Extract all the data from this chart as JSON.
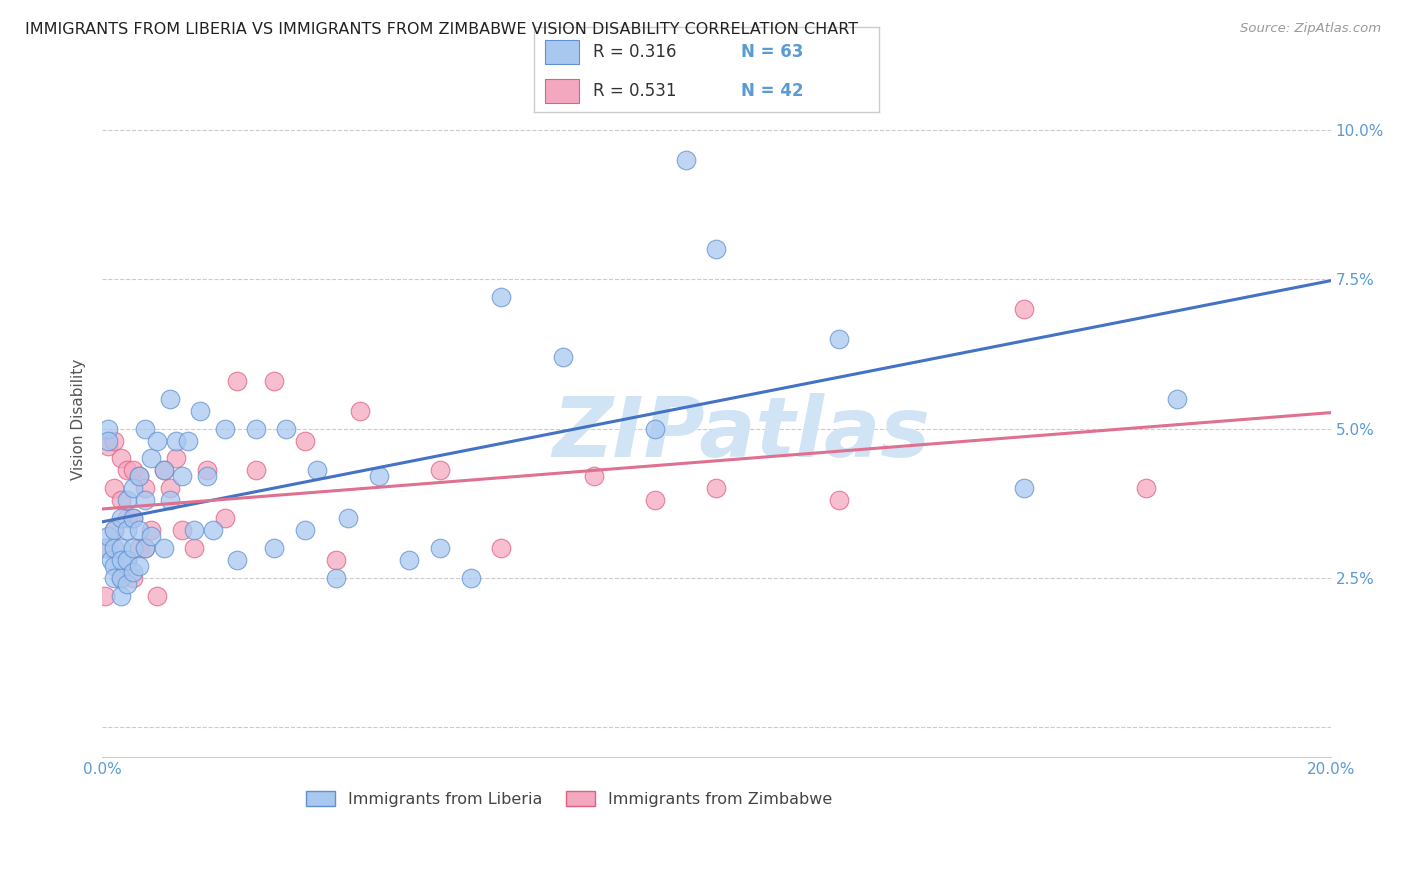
{
  "title": "IMMIGRANTS FROM LIBERIA VS IMMIGRANTS FROM ZIMBABWE VISION DISABILITY CORRELATION CHART",
  "source": "Source: ZipAtlas.com",
  "ylabel": "Vision Disability",
  "yticks": [
    0.0,
    0.025,
    0.05,
    0.075,
    0.1
  ],
  "ytick_labels": [
    "",
    "2.5%",
    "5.0%",
    "7.5%",
    "10.0%"
  ],
  "xticks": [
    0.0,
    0.05,
    0.1,
    0.15,
    0.2
  ],
  "xtick_labels": [
    "0.0%",
    "",
    "",
    "",
    "20.0%"
  ],
  "xlim": [
    0.0,
    0.2
  ],
  "ylim": [
    -0.005,
    0.108
  ],
  "liberia_color": "#A8C8F0",
  "zimbabwe_color": "#F4A8C0",
  "liberia_edge_color": "#6090D0",
  "zimbabwe_edge_color": "#E06080",
  "liberia_line_color": "#4472C4",
  "zimbabwe_line_color": "#E07090",
  "legend_R_liberia": "R = 0.316",
  "legend_N_liberia": "N = 63",
  "legend_R_zimbabwe": "R = 0.531",
  "legend_N_zimbabwe": "N = 42",
  "liberia_scatter_x": [
    0.0005,
    0.001,
    0.001,
    0.001,
    0.0015,
    0.002,
    0.002,
    0.002,
    0.002,
    0.003,
    0.003,
    0.003,
    0.003,
    0.003,
    0.004,
    0.004,
    0.004,
    0.004,
    0.005,
    0.005,
    0.005,
    0.005,
    0.006,
    0.006,
    0.006,
    0.007,
    0.007,
    0.007,
    0.008,
    0.008,
    0.009,
    0.01,
    0.01,
    0.011,
    0.011,
    0.012,
    0.013,
    0.014,
    0.015,
    0.016,
    0.017,
    0.018,
    0.02,
    0.022,
    0.025,
    0.028,
    0.03,
    0.033,
    0.035,
    0.038,
    0.04,
    0.045,
    0.05,
    0.055,
    0.06,
    0.065,
    0.075,
    0.09,
    0.095,
    0.1,
    0.12,
    0.15,
    0.175
  ],
  "liberia_scatter_y": [
    0.03,
    0.05,
    0.048,
    0.032,
    0.028,
    0.033,
    0.03,
    0.027,
    0.025,
    0.035,
    0.03,
    0.028,
    0.025,
    0.022,
    0.038,
    0.033,
    0.028,
    0.024,
    0.04,
    0.035,
    0.03,
    0.026,
    0.042,
    0.033,
    0.027,
    0.05,
    0.038,
    0.03,
    0.045,
    0.032,
    0.048,
    0.043,
    0.03,
    0.055,
    0.038,
    0.048,
    0.042,
    0.048,
    0.033,
    0.053,
    0.042,
    0.033,
    0.05,
    0.028,
    0.05,
    0.03,
    0.05,
    0.033,
    0.043,
    0.025,
    0.035,
    0.042,
    0.028,
    0.03,
    0.025,
    0.072,
    0.062,
    0.05,
    0.095,
    0.08,
    0.065,
    0.04,
    0.055
  ],
  "zimbabwe_scatter_x": [
    0.0005,
    0.001,
    0.001,
    0.002,
    0.002,
    0.002,
    0.003,
    0.003,
    0.003,
    0.004,
    0.004,
    0.004,
    0.005,
    0.005,
    0.005,
    0.006,
    0.006,
    0.007,
    0.007,
    0.008,
    0.009,
    0.01,
    0.011,
    0.012,
    0.013,
    0.015,
    0.017,
    0.02,
    0.022,
    0.025,
    0.028,
    0.033,
    0.038,
    0.042,
    0.055,
    0.065,
    0.08,
    0.09,
    0.1,
    0.12,
    0.15,
    0.17
  ],
  "zimbabwe_scatter_y": [
    0.022,
    0.047,
    0.03,
    0.048,
    0.04,
    0.033,
    0.045,
    0.038,
    0.025,
    0.043,
    0.035,
    0.028,
    0.043,
    0.035,
    0.025,
    0.042,
    0.03,
    0.04,
    0.03,
    0.033,
    0.022,
    0.043,
    0.04,
    0.045,
    0.033,
    0.03,
    0.043,
    0.035,
    0.058,
    0.043,
    0.058,
    0.048,
    0.028,
    0.053,
    0.043,
    0.03,
    0.042,
    0.038,
    0.04,
    0.038,
    0.07,
    0.04
  ],
  "watermark_text": "ZIPatlas",
  "watermark_color": "#D0E4F5",
  "background_color": "#FFFFFF",
  "grid_color": "#CCCCCC",
  "tick_color": "#5B9BD5",
  "legend_text_color": "#333333",
  "legend_num_color": "#5B9BD5",
  "title_fontsize": 11.5,
  "axis_label_fontsize": 11,
  "tick_fontsize": 11
}
